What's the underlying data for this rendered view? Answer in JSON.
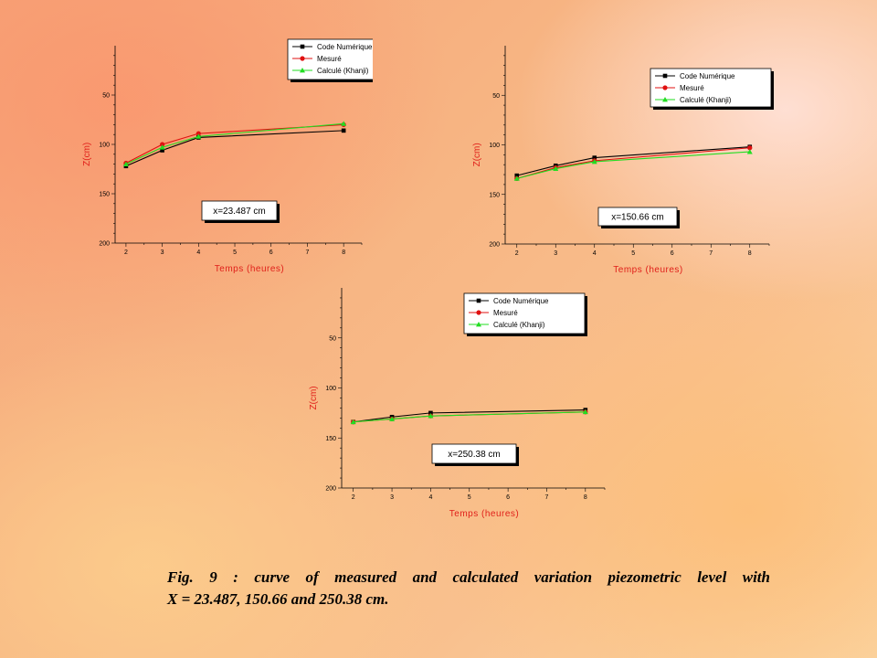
{
  "chart_data": [
    {
      "type": "line",
      "xlabel": "Temps (heures)",
      "ylabel": "Z(cm)",
      "xlim": [
        1.7,
        8.5
      ],
      "ylim": [
        200,
        0
      ],
      "x_ticks": [
        2,
        3,
        4,
        5,
        6,
        7,
        8
      ],
      "y_ticks": [
        50,
        100,
        150,
        200
      ],
      "annotation": "x=23.487 cm",
      "legend": "top-right",
      "series": [
        {
          "name": "Code Numérique",
          "color": "#000000",
          "marker": "square",
          "x": [
            2,
            3,
            4,
            8
          ],
          "y": [
            122,
            106,
            93,
            86
          ]
        },
        {
          "name": "Mesuré",
          "color": "#e01010",
          "marker": "circle",
          "x": [
            2,
            3,
            4,
            8
          ],
          "y": [
            119,
            100,
            89,
            80
          ]
        },
        {
          "name": "Calculé (Khanji)",
          "color": "#22dd22",
          "marker": "triangle",
          "x": [
            2,
            3,
            4,
            8
          ],
          "y": [
            120,
            103,
            92,
            79
          ]
        }
      ]
    },
    {
      "type": "line",
      "xlabel": "Temps (heures)",
      "ylabel": "Z(cm)",
      "xlim": [
        1.7,
        8.5
      ],
      "ylim": [
        200,
        0
      ],
      "x_ticks": [
        2,
        3,
        4,
        5,
        6,
        7,
        8
      ],
      "y_ticks": [
        50,
        100,
        150,
        200
      ],
      "annotation": "x=150.66 cm",
      "legend": "top-right",
      "series": [
        {
          "name": "Code Numérique",
          "color": "#000000",
          "marker": "square",
          "x": [
            2,
            3,
            4,
            8
          ],
          "y": [
            131,
            121,
            113,
            102
          ]
        },
        {
          "name": "Mesuré",
          "color": "#e01010",
          "marker": "circle",
          "x": [
            2,
            3,
            4,
            8
          ],
          "y": [
            134,
            123,
            116,
            103
          ]
        },
        {
          "name": "Calculé (Khanji)",
          "color": "#22dd22",
          "marker": "triangle",
          "x": [
            2,
            3,
            4,
            8
          ],
          "y": [
            134,
            124,
            117,
            107
          ]
        }
      ]
    },
    {
      "type": "line",
      "xlabel": "Temps (heures)",
      "ylabel": "Z(cm)",
      "xlim": [
        1.7,
        8.5
      ],
      "ylim": [
        200,
        0
      ],
      "x_ticks": [
        2,
        3,
        4,
        5,
        6,
        7,
        8
      ],
      "y_ticks": [
        50,
        100,
        150,
        200
      ],
      "annotation": "x=250.38 cm",
      "legend": "top-right",
      "series": [
        {
          "name": "Code Numérique",
          "color": "#000000",
          "marker": "square",
          "x": [
            2,
            3,
            4,
            8
          ],
          "y": [
            134,
            129,
            125,
            122
          ]
        },
        {
          "name": "Mesuré",
          "color": "#e01010",
          "marker": "circle",
          "x": [
            2,
            3,
            4,
            8
          ],
          "y": [
            134,
            131,
            128,
            124
          ]
        },
        {
          "name": "Calculé (Khanji)",
          "color": "#22dd22",
          "marker": "triangle",
          "x": [
            2,
            3,
            4,
            8
          ],
          "y": [
            134,
            131,
            128,
            124
          ]
        }
      ]
    }
  ],
  "caption": {
    "line1": "Fig. 9 : curve of measured and calculated variation piezometric level  with",
    "line2": "X = 23.487, 150.66 and 250.38 cm."
  }
}
